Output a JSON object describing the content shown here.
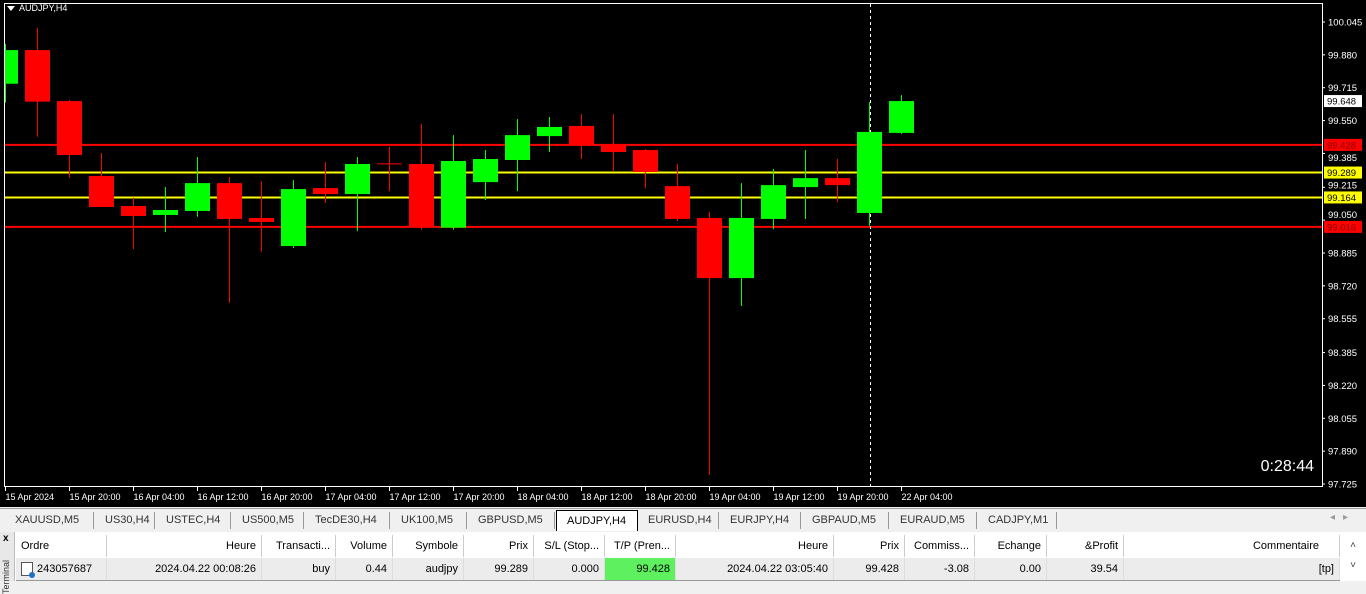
{
  "chart": {
    "title": "AUDJPY,H4",
    "countdown": "0:28:44",
    "colors": {
      "background": "#000000",
      "bull": "#00ff00",
      "bear": "#ff0000",
      "tp_line": "#ff0000",
      "entry_line": "#ffff00",
      "bid_label": "#ffffff"
    },
    "price_ticks": [
      "100.045",
      "99.880",
      "99.715",
      "99.550",
      "99.385",
      "99.215",
      "99.050",
      "98.885",
      "98.720",
      "98.555",
      "98.385",
      "98.220",
      "98.055",
      "97.890",
      "97.725"
    ],
    "price_range": [
      97.725,
      100.045
    ],
    "date_labels": [
      "15 Apr 2024",
      "15 Apr 20:00",
      "16 Apr 04:00",
      "16 Apr 12:00",
      "16 Apr 20:00",
      "17 Apr 04:00",
      "17 Apr 12:00",
      "17 Apr 20:00",
      "18 Apr 04:00",
      "18 Apr 12:00",
      "18 Apr 20:00",
      "19 Apr 04:00",
      "19 Apr 12:00",
      "19 Apr 20:00",
      "22 Apr 04:00"
    ],
    "candles": [
      [
        99.735,
        99.935,
        99.64,
        99.904
      ],
      [
        99.904,
        100.015,
        99.469,
        99.645
      ],
      [
        99.648,
        99.653,
        99.263,
        99.377
      ],
      [
        99.272,
        99.387,
        99.116,
        99.116
      ],
      [
        99.121,
        99.163,
        98.905,
        99.071
      ],
      [
        99.076,
        99.216,
        98.99,
        99.101
      ],
      [
        99.096,
        99.367,
        99.067,
        99.236
      ],
      [
        99.236,
        99.266,
        98.635,
        99.056
      ],
      [
        99.061,
        99.246,
        98.891,
        99.041
      ],
      [
        98.92,
        99.251,
        98.91,
        99.206
      ],
      [
        99.211,
        99.342,
        99.136,
        99.181
      ],
      [
        99.181,
        99.367,
        98.995,
        99.332
      ],
      [
        99.335,
        99.417,
        99.196,
        99.33
      ],
      [
        99.332,
        99.533,
        99.002,
        99.017
      ],
      [
        99.012,
        99.477,
        99.002,
        99.347
      ],
      [
        99.241,
        99.402,
        99.151,
        99.357
      ],
      [
        99.352,
        99.558,
        99.196,
        99.477
      ],
      [
        99.472,
        99.568,
        99.392,
        99.518
      ],
      [
        99.523,
        99.583,
        99.357,
        99.432
      ],
      [
        99.432,
        99.583,
        99.297,
        99.392
      ],
      [
        99.402,
        99.407,
        99.211,
        99.292
      ],
      [
        99.221,
        99.332,
        99.046,
        99.056
      ],
      [
        99.061,
        99.091,
        97.77,
        98.759
      ],
      [
        98.759,
        99.236,
        98.619,
        99.061
      ],
      [
        99.056,
        99.307,
        99.005,
        99.226
      ],
      [
        99.216,
        99.402,
        99.056,
        99.261
      ],
      [
        99.261,
        99.357,
        99.141,
        99.226
      ],
      [
        99.086,
        99.643,
        99.021,
        99.493
      ],
      [
        99.488,
        99.678,
        99.483,
        99.648
      ]
    ],
    "crosshair_candle_index": 27,
    "levels": [
      {
        "price": 99.428,
        "label": "99.428",
        "color": "#ff0000",
        "text_color": "#800000"
      },
      {
        "price": 99.289,
        "label": "99.289",
        "color": "#ffff00",
        "text_color": "#000000"
      },
      {
        "price": 99.164,
        "label": "99.164",
        "color": "#ffff00",
        "text_color": "#000000"
      },
      {
        "price": 99.016,
        "label": "99.016",
        "color": "#ff0000",
        "text_color": "#800000"
      }
    ],
    "bid": {
      "price": 99.648,
      "label": "99.648"
    }
  },
  "tabs": [
    {
      "label": "XAUUSD,M5"
    },
    {
      "label": "US30,H4"
    },
    {
      "label": "USTEC,H4"
    },
    {
      "label": "US500,M5"
    },
    {
      "label": "TecDE30,H4"
    },
    {
      "label": "UK100,M5"
    },
    {
      "label": "GBPUSD,M5"
    },
    {
      "label": "AUDJPY,H4",
      "active": true
    },
    {
      "label": "EURUSD,H4"
    },
    {
      "label": "EURJPY,H4"
    },
    {
      "label": "GBPAUD,M5"
    },
    {
      "label": "EURAUD,M5"
    },
    {
      "label": "CADJPY,M1"
    }
  ],
  "terminal": {
    "close": "x",
    "side_label": "Terminal",
    "columns": [
      "Ordre",
      "Heure",
      "Transacti...",
      "Volume",
      "Symbole",
      "Prix",
      "S/L (Stop...",
      "T/P (Pren...",
      "Heure",
      "Prix",
      "Commiss...",
      "Echange",
      "&Profit",
      "Commentaire"
    ],
    "rows": [
      [
        "243057687",
        "2024.04.22 00:08:26",
        "buy",
        "0.44",
        "audjpy",
        "99.289",
        "0.000",
        "99.428",
        "2024.04.22 03:05:40",
        "99.428",
        "-3.08",
        "0.00",
        "39.54",
        "[tp]"
      ]
    ]
  }
}
